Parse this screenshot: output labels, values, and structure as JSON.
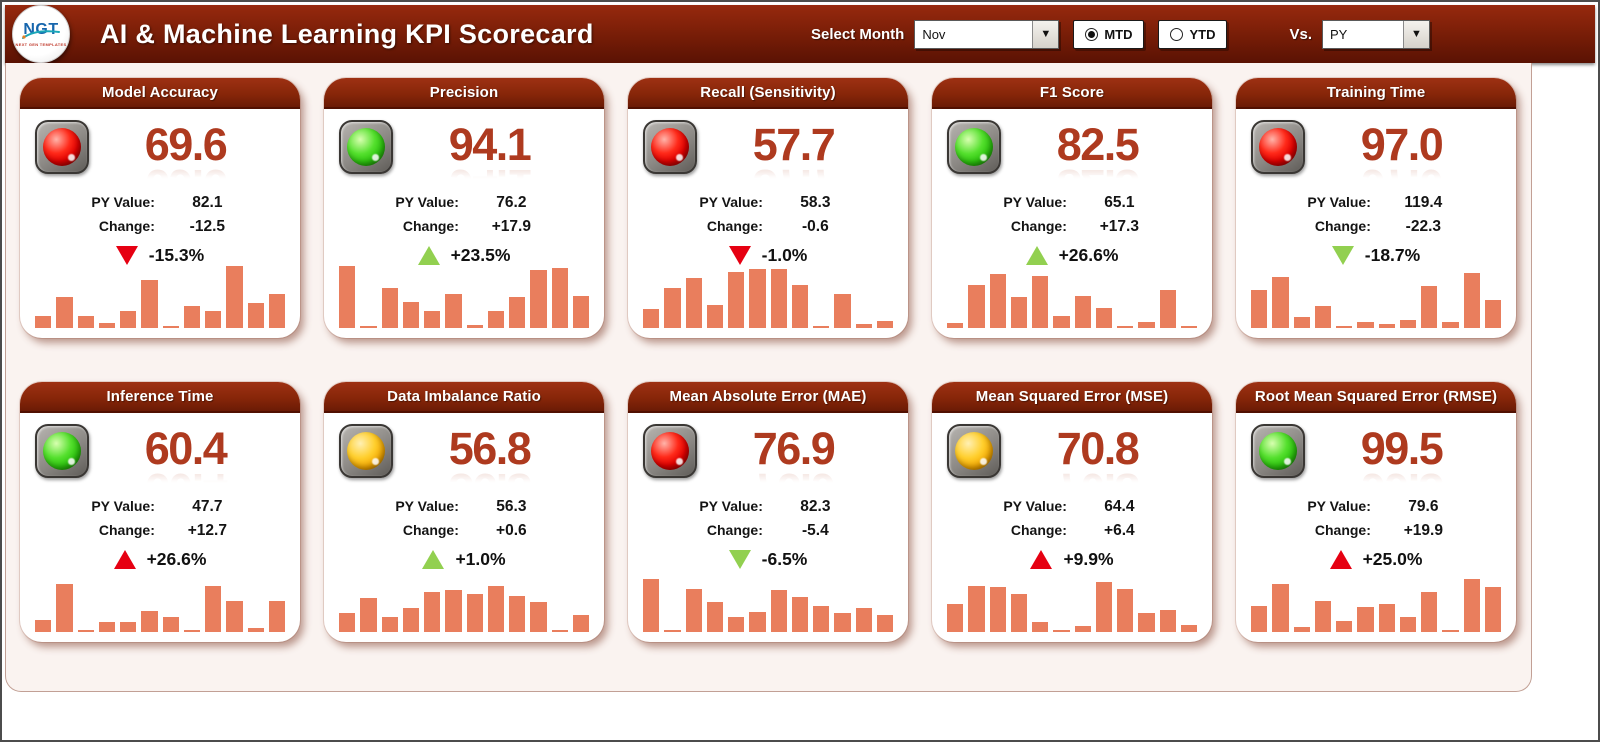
{
  "header": {
    "logo_text": "NGT",
    "logo_subtext": "NEXT GEN TEMPLATES",
    "title": "AI & Machine Learning KPI Scorecard",
    "select_month_label": "Select Month",
    "month_value": "Nov",
    "mtd_label": "MTD",
    "ytd_label": "YTD",
    "mtd_selected": true,
    "ytd_selected": false,
    "vs_label": "Vs.",
    "vs_value": "PY"
  },
  "labels": {
    "py_value": "PY Value:",
    "change": "Change:"
  },
  "icons": {
    "dropdown_arrow": "▼"
  },
  "colors": {
    "header_red": "#7C1F08",
    "card_header_red": "#872609",
    "value_red": "#AE3A1F",
    "bar_salmon": "#E97E5D",
    "arrow_red": "#E60012",
    "arrow_green": "#92D050",
    "light_red": "#E00000",
    "light_green": "#2CC40E",
    "light_amber": "#F5A800",
    "content_bg": "#FAF3F0"
  },
  "cards": [
    {
      "title": "Model Accuracy",
      "value": "69.6",
      "light": "red",
      "py_value": "82.1",
      "change": "-12.5",
      "pct": "-15.3%",
      "arrow": "down",
      "arrow_color": "red",
      "bars": [
        20,
        50,
        20,
        8,
        28,
        78,
        3,
        35,
        27,
        100,
        40,
        55
      ]
    },
    {
      "title": "Precision",
      "value": "94.1",
      "light": "green",
      "py_value": "76.2",
      "change": "+17.9",
      "pct": "+23.5%",
      "arrow": "up",
      "arrow_color": "green",
      "bars": [
        100,
        3,
        65,
        42,
        28,
        55,
        5,
        28,
        50,
        93,
        97,
        52
      ]
    },
    {
      "title": "Recall (Sensitivity)",
      "value": "57.7",
      "light": "red",
      "py_value": "58.3",
      "change": "-0.6",
      "pct": "-1.0%",
      "arrow": "down",
      "arrow_color": "red",
      "bars": [
        30,
        65,
        80,
        37,
        90,
        95,
        95,
        70,
        3,
        55,
        6,
        12
      ]
    },
    {
      "title": "F1 Score",
      "value": "82.5",
      "light": "green",
      "py_value": "65.1",
      "change": "+17.3",
      "pct": "+26.6%",
      "arrow": "up",
      "arrow_color": "green",
      "bars": [
        8,
        70,
        87,
        50,
        84,
        20,
        52,
        32,
        3,
        10,
        62,
        3
      ]
    },
    {
      "title": "Training Time",
      "value": "97.0",
      "light": "red",
      "py_value": "119.4",
      "change": "-22.3",
      "pct": "-18.7%",
      "arrow": "down",
      "arrow_color": "green",
      "bars": [
        62,
        82,
        17,
        35,
        3,
        10,
        6,
        13,
        67,
        10,
        88,
        45
      ]
    },
    {
      "title": "Inference Time",
      "value": "60.4",
      "light": "green",
      "py_value": "47.7",
      "change": "+12.7",
      "pct": "+26.6%",
      "arrow": "up",
      "arrow_color": "red",
      "bars": [
        20,
        78,
        3,
        16,
        16,
        34,
        25,
        3,
        75,
        50,
        7,
        50
      ]
    },
    {
      "title": "Data Imbalance Ratio",
      "value": "56.8",
      "light": "amber",
      "py_value": "56.3",
      "change": "+0.6",
      "pct": "+1.0%",
      "arrow": "up",
      "arrow_color": "green",
      "bars": [
        30,
        55,
        25,
        38,
        65,
        68,
        62,
        75,
        58,
        48,
        3,
        28
      ]
    },
    {
      "title": "Mean Absolute Error (MAE)",
      "value": "76.9",
      "light": "red",
      "py_value": "82.3",
      "change": "-5.4",
      "pct": "-6.5%",
      "arrow": "down",
      "arrow_color": "green",
      "bars": [
        85,
        3,
        70,
        48,
        25,
        32,
        68,
        56,
        42,
        30,
        38,
        28
      ]
    },
    {
      "title": "Mean Squared Error (MSE)",
      "value": "70.8",
      "light": "amber",
      "py_value": "64.4",
      "change": "+6.4",
      "pct": "+9.9%",
      "arrow": "up",
      "arrow_color": "red",
      "bars": [
        45,
        75,
        72,
        62,
        16,
        3,
        10,
        80,
        70,
        30,
        35,
        12
      ]
    },
    {
      "title": "Root Mean Squared Error (RMSE)",
      "value": "99.5",
      "light": "green",
      "py_value": "79.6",
      "change": "+19.9",
      "pct": "+25.0%",
      "arrow": "up",
      "arrow_color": "red",
      "bars": [
        42,
        78,
        8,
        50,
        18,
        40,
        45,
        25,
        65,
        3,
        85,
        72
      ]
    }
  ]
}
